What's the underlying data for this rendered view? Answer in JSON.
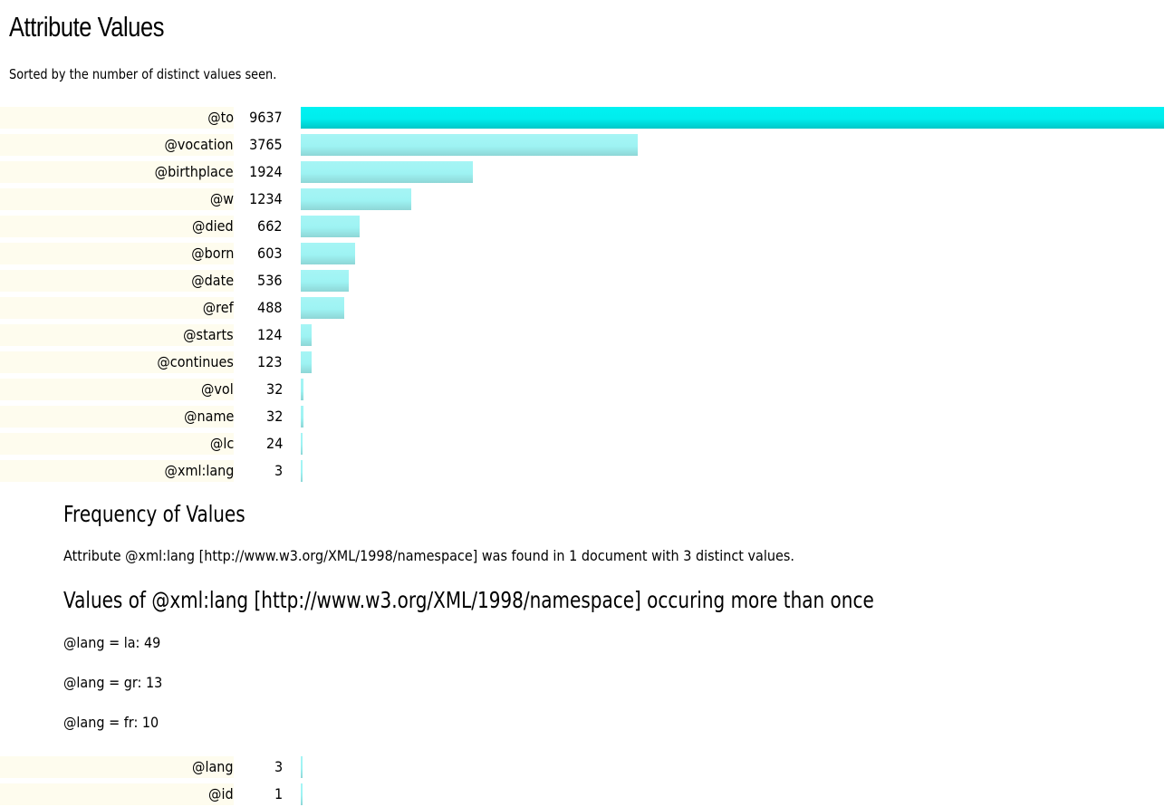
{
  "page": {
    "title": "Attribute Values",
    "subtitle": "Sorted by the number of distinct values seen."
  },
  "attributes": [
    {
      "name": "@to",
      "count": "9637",
      "value": 9637
    },
    {
      "name": "@vocation",
      "count": "3765",
      "value": 3765
    },
    {
      "name": "@birthplace",
      "count": "1924",
      "value": 1924
    },
    {
      "name": "@w",
      "count": "1234",
      "value": 1234
    },
    {
      "name": "@died",
      "count": "662",
      "value": 662
    },
    {
      "name": "@born",
      "count": "603",
      "value": 603
    },
    {
      "name": "@date",
      "count": "536",
      "value": 536
    },
    {
      "name": "@ref",
      "count": "488",
      "value": 488
    },
    {
      "name": "@starts",
      "count": "124",
      "value": 124
    },
    {
      "name": "@continues",
      "count": "123",
      "value": 123
    },
    {
      "name": "@vol",
      "count": "32",
      "value": 32
    },
    {
      "name": "@name",
      "count": "32",
      "value": 32
    },
    {
      "name": "@lc",
      "count": "24",
      "value": 24
    },
    {
      "name": "@xml:lang",
      "count": "3",
      "value": 3
    }
  ],
  "frequency": {
    "heading": "Frequency of Values",
    "summary": "Attribute @xml:lang [http://www.w3.org/XML/1998/namespace] was found in 1 document with 3 distinct values.",
    "values_heading": "Values of @xml:lang [http://www.w3.org/XML/1998/namespace] occuring more than once",
    "values": [
      "@lang = la: 49",
      "@lang = gr: 13",
      "@lang = fr: 10"
    ]
  },
  "attributes_more": [
    {
      "name": "@lang",
      "count": "3",
      "value": 3
    },
    {
      "name": "@id",
      "count": "1",
      "value": 1
    }
  ],
  "chart_scale_max": 9637,
  "colors": {
    "name_bg": "#fefcee",
    "bar_top": "#00eded",
    "bar": "#9ef3f3"
  }
}
